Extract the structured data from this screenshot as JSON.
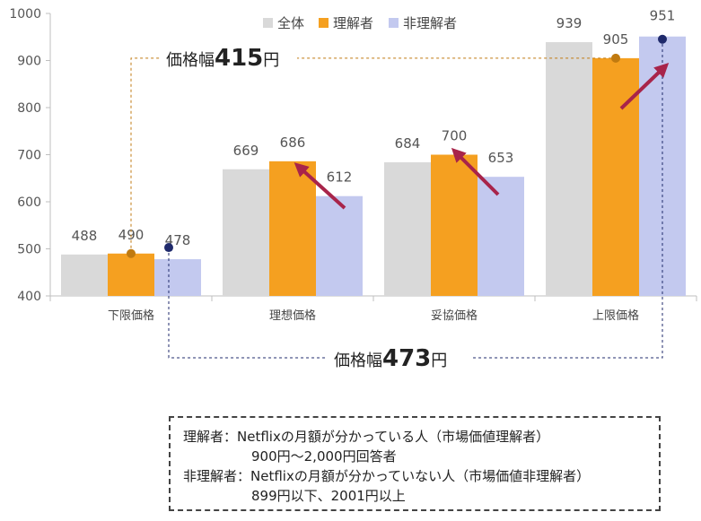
{
  "chart_data": {
    "type": "bar",
    "categories": [
      "下限価格",
      "理想価格",
      "妥協価格",
      "上限価格"
    ],
    "series": [
      {
        "name": "全体",
        "color": "#d9d9d9",
        "values": [
          488,
          669,
          684,
          939
        ]
      },
      {
        "name": "理解者",
        "color": "#f5a020",
        "values": [
          490,
          686,
          700,
          905
        ]
      },
      {
        "name": "非理解者",
        "color": "#c3c9ef",
        "values": [
          478,
          612,
          653,
          951
        ]
      }
    ],
    "ylim": [
      400,
      1000
    ],
    "yticks": [
      400,
      500,
      600,
      700,
      800,
      900,
      1000
    ],
    "legend_position": "top-right",
    "grid": false,
    "annotations": {
      "range_understanders": {
        "prefix": "価格幅",
        "value": "415",
        "suffix": "円",
        "from": 490,
        "to": 905,
        "color": "#c07a10"
      },
      "range_non_understanders": {
        "prefix": "価格幅",
        "value": "473",
        "suffix": "円",
        "from": 478,
        "to": 951,
        "color": "#1f2a6b"
      }
    },
    "arrow_color": "#a8244a"
  },
  "note": {
    "line1": "理解者：Netflixの月額が分かっている人（市場価値理解者）",
    "line2": "900円～2,000円回答者",
    "line3": "非理解者：Netflixの月額が分かっていない人（市場価値非理解者）",
    "line4": "899円以下、2001円以上"
  }
}
